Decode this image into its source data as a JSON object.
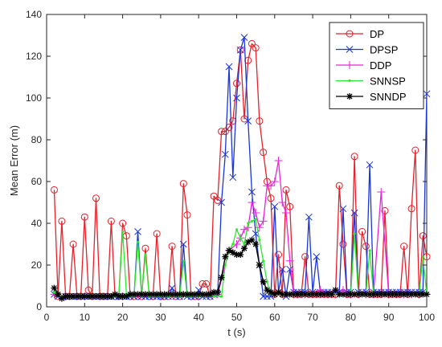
{
  "chart_data": {
    "type": "line",
    "xlabel": "t (s)",
    "ylabel": "Mean Error (m)",
    "xlim": [
      0,
      100
    ],
    "ylim": [
      0,
      140
    ],
    "xticks": [
      0,
      10,
      20,
      30,
      40,
      50,
      60,
      70,
      80,
      90,
      100
    ],
    "yticks": [
      0,
      20,
      40,
      60,
      80,
      100,
      120,
      140
    ],
    "grid": false,
    "legend_position": "top-right",
    "series": [
      {
        "name": "DP",
        "color": "#e8202a",
        "marker": "circle",
        "x": [
          2,
          3,
          4,
          5,
          6,
          7,
          8,
          9,
          10,
          11,
          12,
          13,
          14,
          15,
          16,
          17,
          18,
          19,
          20,
          21,
          22,
          23,
          24,
          25,
          26,
          27,
          28,
          29,
          30,
          31,
          32,
          33,
          34,
          35,
          36,
          37,
          38,
          39,
          40,
          41,
          42,
          43,
          44,
          45,
          46,
          47,
          48,
          49,
          50,
          51,
          52,
          53,
          54,
          55,
          56,
          57,
          58,
          59,
          60,
          61,
          62,
          63,
          64,
          65,
          66,
          67,
          68,
          69,
          70,
          71,
          72,
          73,
          74,
          75,
          76,
          77,
          78,
          79,
          80,
          81,
          82,
          83,
          84,
          85,
          86,
          87,
          88,
          89,
          90,
          91,
          92,
          93,
          94,
          95,
          96,
          97,
          98,
          99,
          100
        ],
        "y": [
          56,
          5,
          41,
          5,
          5,
          30,
          5,
          5,
          43,
          8,
          5,
          52,
          5,
          5,
          5,
          41,
          5,
          5,
          40,
          34,
          5,
          5,
          5,
          5,
          28,
          5,
          5,
          35,
          5,
          5,
          5,
          29,
          5,
          5,
          59,
          44,
          5,
          5,
          5,
          11,
          11,
          5,
          53,
          51,
          84,
          84,
          86,
          89,
          107,
          123,
          90,
          118,
          126,
          124,
          89,
          74,
          60,
          52,
          6,
          25,
          6,
          56,
          48,
          6,
          6,
          6,
          24,
          6,
          6,
          6,
          6,
          6,
          6,
          6,
          6,
          58,
          30,
          6,
          6,
          72,
          6,
          36,
          29,
          6,
          6,
          6,
          6,
          46,
          6,
          6,
          6,
          6,
          29,
          6,
          47,
          75,
          6,
          34,
          24
        ]
      },
      {
        "name": "DPSP",
        "color": "#1a35d8",
        "marker": "x",
        "x": [
          2,
          3,
          4,
          5,
          6,
          7,
          8,
          9,
          10,
          11,
          12,
          13,
          14,
          15,
          16,
          17,
          18,
          19,
          20,
          21,
          22,
          23,
          24,
          25,
          26,
          27,
          28,
          29,
          30,
          31,
          32,
          33,
          34,
          35,
          36,
          37,
          38,
          39,
          40,
          41,
          42,
          43,
          44,
          45,
          46,
          47,
          48,
          49,
          50,
          51,
          52,
          53,
          54,
          55,
          56,
          57,
          58,
          59,
          60,
          61,
          62,
          63,
          64,
          65,
          66,
          67,
          68,
          69,
          70,
          71,
          72,
          73,
          74,
          75,
          76,
          77,
          78,
          79,
          80,
          81,
          82,
          83,
          84,
          85,
          86,
          87,
          88,
          89,
          90,
          91,
          92,
          93,
          94,
          95,
          96,
          97,
          98,
          99,
          100
        ],
        "y": [
          6,
          5,
          5,
          5,
          5,
          5,
          5,
          5,
          5,
          5,
          5,
          5,
          5,
          5,
          5,
          5,
          5,
          5,
          5,
          5,
          5,
          5,
          36,
          5,
          5,
          5,
          5,
          5,
          5,
          5,
          5,
          9,
          5,
          5,
          30,
          5,
          5,
          5,
          8,
          5,
          5,
          5,
          6,
          6,
          50,
          73,
          115,
          62,
          100,
          123,
          129,
          89,
          55,
          35,
          20,
          5,
          5,
          5,
          48,
          7,
          18,
          5,
          18,
          7,
          7,
          7,
          7,
          43,
          7,
          24,
          7,
          7,
          7,
          7,
          7,
          7,
          47,
          7,
          7,
          45,
          7,
          7,
          7,
          68,
          7,
          7,
          7,
          7,
          7,
          7,
          7,
          7,
          7,
          7,
          7,
          7,
          7,
          7,
          102
        ]
      },
      {
        "name": "DDP",
        "color": "#ee22dd",
        "marker": "plus",
        "x": [
          2,
          5,
          10,
          20,
          30,
          40,
          45,
          48,
          50,
          51,
          52,
          53,
          54,
          55,
          56,
          57,
          58,
          59,
          60,
          61,
          62,
          63,
          64,
          65,
          66,
          68,
          70,
          72,
          74,
          76,
          78,
          80,
          82,
          84,
          86,
          88,
          90,
          92,
          94,
          96,
          98,
          100
        ],
        "y": [
          6,
          5,
          5,
          5,
          5,
          5,
          6,
          27,
          30,
          33,
          37,
          38,
          50,
          45,
          38,
          41,
          58,
          58,
          60,
          70,
          50,
          45,
          22,
          6,
          6,
          6,
          6,
          8,
          6,
          6,
          8,
          6,
          6,
          6,
          6,
          55,
          6,
          6,
          6,
          6,
          6,
          6
        ]
      },
      {
        "name": "SNNSP",
        "color": "#2ee82e",
        "marker": "dot",
        "x": [
          2,
          4,
          6,
          8,
          10,
          12,
          14,
          16,
          18,
          19,
          20,
          21,
          22,
          23,
          24,
          25,
          26,
          27,
          28,
          30,
          32,
          34,
          35,
          36,
          37,
          38,
          40,
          42,
          44,
          46,
          47,
          48,
          49,
          50,
          51,
          52,
          53,
          54,
          55,
          56,
          57,
          58,
          59,
          60,
          62,
          64,
          66,
          68,
          70,
          72,
          74,
          76,
          78,
          80,
          81,
          82,
          83,
          84,
          85,
          86,
          88,
          90,
          92,
          94,
          96,
          97,
          98,
          99,
          100
        ],
        "y": [
          7,
          5,
          5,
          5,
          5,
          5,
          5,
          5,
          5,
          5,
          36,
          6,
          5,
          5,
          31,
          5,
          25,
          5,
          5,
          5,
          5,
          5,
          5,
          22,
          5,
          5,
          5,
          5,
          5,
          5,
          20,
          27,
          30,
          37,
          33,
          30,
          40,
          41,
          42,
          32,
          22,
          12,
          6,
          6,
          6,
          6,
          6,
          6,
          6,
          6,
          6,
          6,
          6,
          6,
          35,
          6,
          6,
          6,
          27,
          6,
          6,
          6,
          6,
          6,
          6,
          6,
          6,
          24,
          6
        ]
      },
      {
        "name": "SNNDP",
        "color": "#000000",
        "marker": "asterisk",
        "x": [
          2,
          3,
          4,
          5,
          6,
          7,
          8,
          9,
          10,
          11,
          12,
          13,
          14,
          15,
          16,
          17,
          18,
          19,
          20,
          21,
          22,
          23,
          24,
          25,
          26,
          27,
          28,
          29,
          30,
          31,
          32,
          33,
          34,
          35,
          36,
          37,
          38,
          39,
          40,
          41,
          42,
          43,
          44,
          45,
          46,
          47,
          48,
          49,
          50,
          51,
          52,
          53,
          54,
          55,
          56,
          57,
          58,
          59,
          60,
          61,
          62,
          63,
          64,
          65,
          66,
          67,
          68,
          69,
          70,
          71,
          72,
          73,
          74,
          75,
          76,
          77,
          78,
          79,
          80,
          81,
          82,
          83,
          84,
          85,
          86,
          87,
          88,
          89,
          90,
          91,
          92,
          93,
          94,
          95,
          96,
          97,
          98,
          99,
          100
        ],
        "y": [
          9,
          6,
          4,
          5,
          5,
          5,
          5,
          5,
          5,
          5,
          5,
          5,
          5,
          5,
          5,
          5,
          6,
          5,
          5,
          5,
          6,
          6,
          6,
          6,
          6,
          6,
          6,
          6,
          6,
          6,
          6,
          6,
          6,
          6,
          6,
          6,
          6,
          6,
          6,
          6,
          6,
          6,
          7,
          7,
          14,
          24,
          27,
          26,
          25,
          25,
          28,
          31,
          32,
          30,
          20,
          12,
          8,
          7,
          6,
          7,
          6,
          6,
          6,
          6,
          6,
          6,
          6,
          6,
          6,
          6,
          6,
          6,
          6,
          6,
          8,
          6,
          6,
          6,
          6,
          6,
          6,
          6,
          6,
          6,
          6,
          6,
          6,
          6,
          6,
          6,
          6,
          6,
          6,
          6,
          6,
          6,
          6,
          6,
          6
        ]
      }
    ]
  }
}
